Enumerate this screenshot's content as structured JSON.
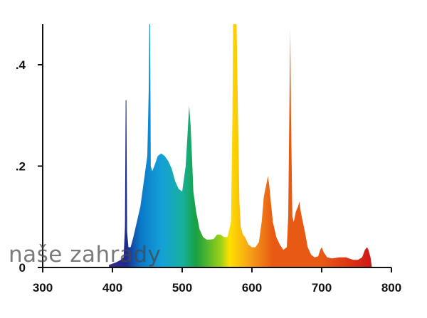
{
  "chart_data": {
    "type": "area",
    "title": "",
    "xlabel": "",
    "ylabel": "",
    "xlim": [
      300,
      800
    ],
    "ylim": [
      0,
      0.48
    ],
    "x_ticks": [
      300,
      400,
      500,
      600,
      700,
      800
    ],
    "x_tick_labels": [
      "300",
      "400",
      "500",
      "600",
      "700",
      "800"
    ],
    "y_ticks": [
      0,
      0.2,
      0.4
    ],
    "y_tick_labels": [
      "0",
      ".2",
      ".4"
    ],
    "grid": false,
    "fill": "visible-spectrum colour gradient",
    "series": [
      {
        "x": [
          395,
          405,
          412,
          416,
          418,
          419,
          420,
          421,
          423,
          426,
          430,
          435,
          440,
          445,
          450,
          452,
          453,
          454,
          455,
          457,
          460,
          465,
          470,
          475,
          480,
          485,
          490,
          495,
          500,
          505,
          508,
          510,
          512,
          514,
          516,
          520,
          525,
          530,
          535,
          540,
          545,
          550,
          555,
          560,
          565,
          570,
          572,
          573,
          574,
          578,
          580,
          582,
          584,
          587,
          590,
          595,
          600,
          605,
          610,
          614,
          617,
          620,
          623,
          625,
          627,
          630,
          635,
          640,
          645,
          650,
          652,
          654,
          655,
          656,
          658,
          660,
          663,
          666,
          668,
          670,
          673,
          676,
          680,
          685,
          690,
          695,
          698,
          700,
          703,
          708,
          715,
          725,
          735,
          745,
          752,
          758,
          762,
          765,
          767,
          770,
          772
        ],
        "y": [
          0.005,
          0.01,
          0.015,
          0.02,
          0.08,
          0.33,
          0.33,
          0.07,
          0.04,
          0.04,
          0.06,
          0.09,
          0.12,
          0.17,
          0.22,
          0.35,
          0.48,
          0.48,
          0.2,
          0.19,
          0.2,
          0.22,
          0.225,
          0.22,
          0.21,
          0.195,
          0.17,
          0.155,
          0.15,
          0.2,
          0.27,
          0.32,
          0.28,
          0.22,
          0.15,
          0.11,
          0.075,
          0.06,
          0.055,
          0.055,
          0.056,
          0.065,
          0.065,
          0.06,
          0.06,
          0.09,
          0.3,
          0.48,
          0.48,
          0.48,
          0.3,
          0.13,
          0.08,
          0.065,
          0.06,
          0.045,
          0.04,
          0.04,
          0.05,
          0.09,
          0.14,
          0.16,
          0.18,
          0.16,
          0.13,
          0.09,
          0.06,
          0.045,
          0.035,
          0.04,
          0.1,
          0.35,
          0.47,
          0.3,
          0.1,
          0.09,
          0.11,
          0.12,
          0.13,
          0.11,
          0.09,
          0.07,
          0.04,
          0.025,
          0.02,
          0.022,
          0.035,
          0.04,
          0.03,
          0.02,
          0.018,
          0.02,
          0.02,
          0.015,
          0.015,
          0.02,
          0.035,
          0.04,
          0.035,
          0.02,
          0.0
        ]
      }
    ]
  },
  "watermark": "naše zahrady",
  "colors": {
    "axis": "#111111",
    "background": "#ffffff",
    "violet": "#3a2a8a",
    "deep_blue": "#1c2a8e",
    "blue": "#0a78c8",
    "cyan_blue": "#14a0d8",
    "teal": "#18b0a0",
    "green": "#18a040",
    "yellow_green": "#9ad018",
    "yellow": "#ffe000",
    "orange": "#f59a18",
    "red_orange": "#e85a14",
    "red": "#d01818"
  }
}
